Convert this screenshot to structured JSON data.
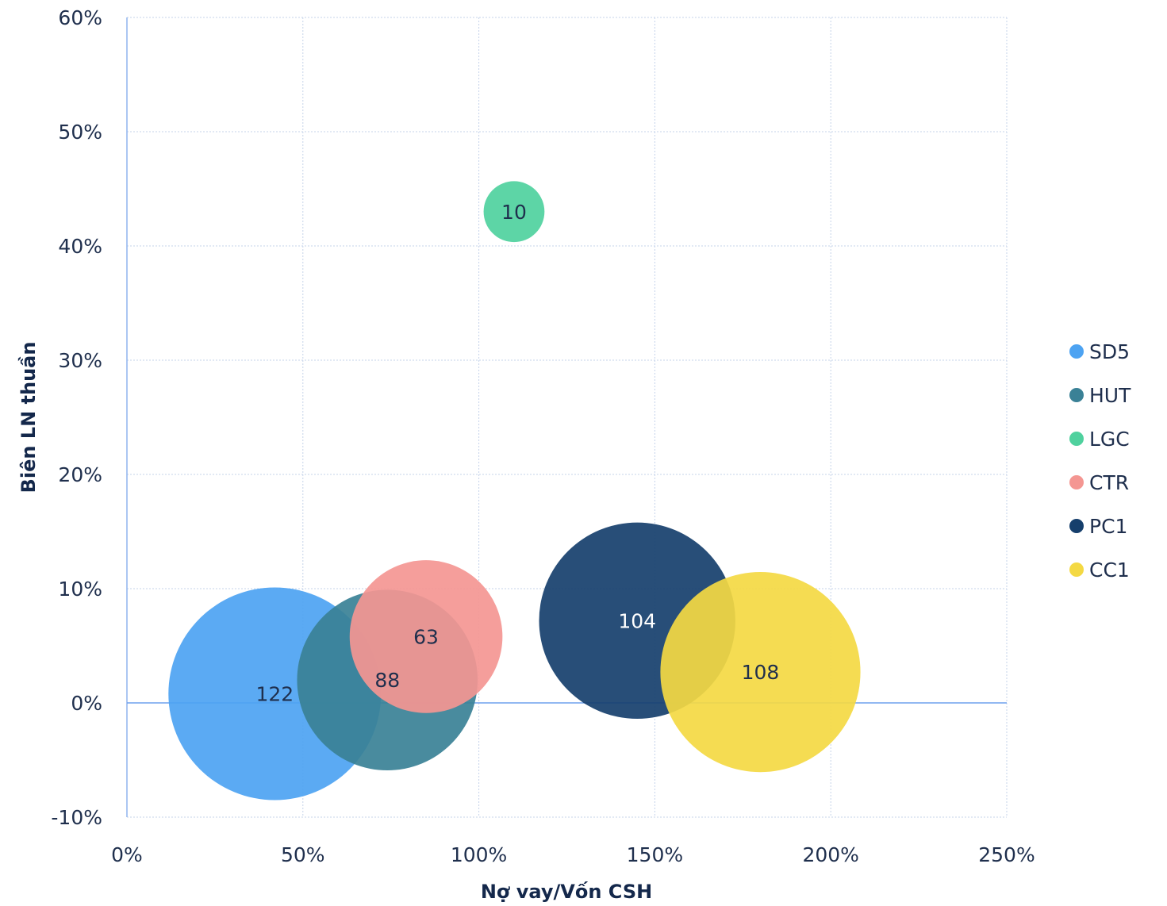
{
  "chart_data": {
    "type": "bubble",
    "xlabel": "Nợ vay/Vốn CSH",
    "ylabel": "Biên LN thuần",
    "xlim": [
      0,
      2.5
    ],
    "ylim": [
      -0.1,
      0.6
    ],
    "x_ticks": [
      0,
      0.5,
      1.0,
      1.5,
      2.0,
      2.5
    ],
    "x_tick_labels": [
      "0%",
      "50%",
      "100%",
      "150%",
      "200%",
      "250%"
    ],
    "y_ticks": [
      -0.1,
      0,
      0.1,
      0.2,
      0.3,
      0.4,
      0.5,
      0.6
    ],
    "y_tick_labels": [
      "-10%",
      "0%",
      "10%",
      "20%",
      "30%",
      "40%",
      "50%",
      "60%"
    ],
    "grid": true,
    "legend_position": "right",
    "series": [
      {
        "name": "SD5",
        "x": 0.42,
        "y": 0.008,
        "size": 122,
        "color": "#4da3f2",
        "label_color": "#1f2f4d"
      },
      {
        "name": "HUT",
        "x": 0.74,
        "y": 0.02,
        "size": 88,
        "color": "#3a8196",
        "label_color": "#1f2f4d"
      },
      {
        "name": "LGC",
        "x": 1.1,
        "y": 0.43,
        "size": 10,
        "color": "#4fd19e",
        "label_color": "#1f2f4d"
      },
      {
        "name": "CTR",
        "x": 0.85,
        "y": 0.058,
        "size": 63,
        "color": "#f49692",
        "label_color": "#1f2f4d"
      },
      {
        "name": "PC1",
        "x": 1.45,
        "y": 0.072,
        "size": 104,
        "color": "#163f6c",
        "label_color": "#ffffff"
      },
      {
        "name": "CC1",
        "x": 1.8,
        "y": 0.027,
        "size": 108,
        "color": "#f4d943",
        "label_color": "#1f2f4d"
      }
    ]
  }
}
